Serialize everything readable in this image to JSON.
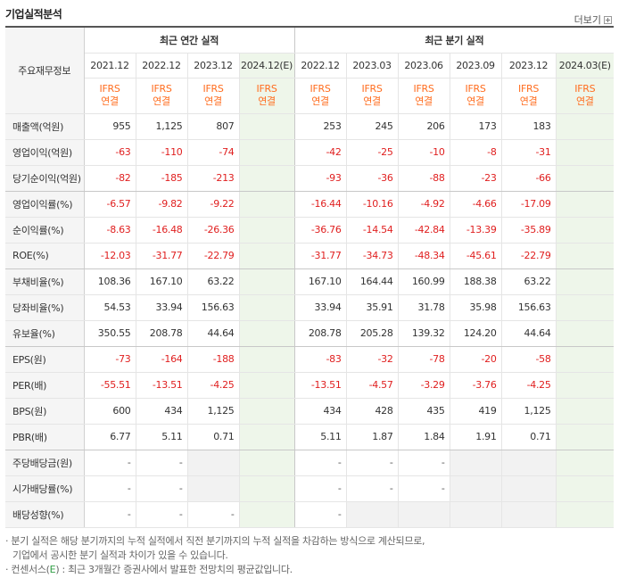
{
  "header": {
    "title": "기업실적분석",
    "more_label": "더보기"
  },
  "table": {
    "corner": "주요재무정보",
    "groups": {
      "annual": "최근 연간 실적",
      "quarterly": "최근 분기 실적"
    },
    "ifrs_top": "IFRS",
    "ifrs_bottom": "연결",
    "columns": [
      "2021.12",
      "2022.12",
      "2023.12",
      "2024.12(E)",
      "2022.12",
      "2023.03",
      "2023.06",
      "2023.09",
      "2023.12",
      "2024.03(E)"
    ],
    "rows": [
      {
        "label": "매출액(억원)",
        "values": [
          "955",
          "1,125",
          "807",
          "",
          "253",
          "245",
          "206",
          "173",
          "183",
          ""
        ]
      },
      {
        "label": "영업이익(억원)",
        "values": [
          "-63",
          "-110",
          "-74",
          "",
          "-42",
          "-25",
          "-10",
          "-8",
          "-31",
          ""
        ]
      },
      {
        "label": "당기순이익(억원)",
        "values": [
          "-82",
          "-185",
          "-213",
          "",
          "-93",
          "-36",
          "-88",
          "-23",
          "-66",
          ""
        ]
      },
      {
        "label": "영업이익률(%)",
        "values": [
          "-6.57",
          "-9.82",
          "-9.22",
          "",
          "-16.44",
          "-10.16",
          "-4.92",
          "-4.66",
          "-17.09",
          ""
        ]
      },
      {
        "label": "순이익률(%)",
        "values": [
          "-8.63",
          "-16.48",
          "-26.36",
          "",
          "-36.76",
          "-14.54",
          "-42.84",
          "-13.39",
          "-35.89",
          ""
        ]
      },
      {
        "label": "ROE(%)",
        "values": [
          "-12.03",
          "-31.77",
          "-22.79",
          "",
          "-31.77",
          "-34.73",
          "-48.34",
          "-45.61",
          "-22.79",
          ""
        ]
      },
      {
        "label": "부채비율(%)",
        "values": [
          "108.36",
          "167.10",
          "63.22",
          "",
          "167.10",
          "164.44",
          "160.99",
          "188.38",
          "63.22",
          ""
        ]
      },
      {
        "label": "당좌비율(%)",
        "values": [
          "54.53",
          "33.94",
          "156.63",
          "",
          "33.94",
          "35.91",
          "31.78",
          "35.98",
          "156.63",
          ""
        ]
      },
      {
        "label": "유보율(%)",
        "values": [
          "350.55",
          "208.78",
          "44.64",
          "",
          "208.78",
          "205.28",
          "139.32",
          "124.20",
          "44.64",
          ""
        ]
      },
      {
        "label": "EPS(원)",
        "values": [
          "-73",
          "-164",
          "-188",
          "",
          "-83",
          "-32",
          "-78",
          "-20",
          "-58",
          ""
        ]
      },
      {
        "label": "PER(배)",
        "values": [
          "-55.51",
          "-13.51",
          "-4.25",
          "",
          "-13.51",
          "-4.57",
          "-3.29",
          "-3.76",
          "-4.25",
          ""
        ]
      },
      {
        "label": "BPS(원)",
        "values": [
          "600",
          "434",
          "1,125",
          "",
          "434",
          "428",
          "435",
          "419",
          "1,125",
          ""
        ]
      },
      {
        "label": "PBR(배)",
        "values": [
          "6.77",
          "5.11",
          "0.71",
          "",
          "5.11",
          "1.87",
          "1.84",
          "1.91",
          "0.71",
          ""
        ]
      },
      {
        "label": "주당배당금(원)",
        "values": [
          "-",
          "-",
          "",
          "",
          "-",
          "-",
          "-",
          "",
          "",
          ""
        ]
      },
      {
        "label": "시가배당률(%)",
        "values": [
          "-",
          "-",
          "",
          "",
          "-",
          "-",
          "-",
          "",
          "",
          ""
        ]
      },
      {
        "label": "배당성향(%)",
        "values": [
          "-",
          "-",
          "-",
          "",
          "-",
          "",
          "",
          "",
          "",
          ""
        ]
      }
    ]
  },
  "notes": {
    "line1": "· 분기 실적은 해당 분기까지의 누적 실적에서 직전 분기까지의 누적 실적을 차감하는 방식으로 계산되므로,",
    "line2": "기업에서 공시한 분기 실적과 차이가 있을 수 있습니다.",
    "line3a": "· 컨센서스(",
    "line3e": "E",
    "line3b": ") : 최근 3개월간 증권사에서 발표한 전망치의 평균값입니다."
  },
  "colors": {
    "negative": "#e02020",
    "ifrs": "#ff6d1f",
    "estimate_bg": "#eef6ea"
  }
}
